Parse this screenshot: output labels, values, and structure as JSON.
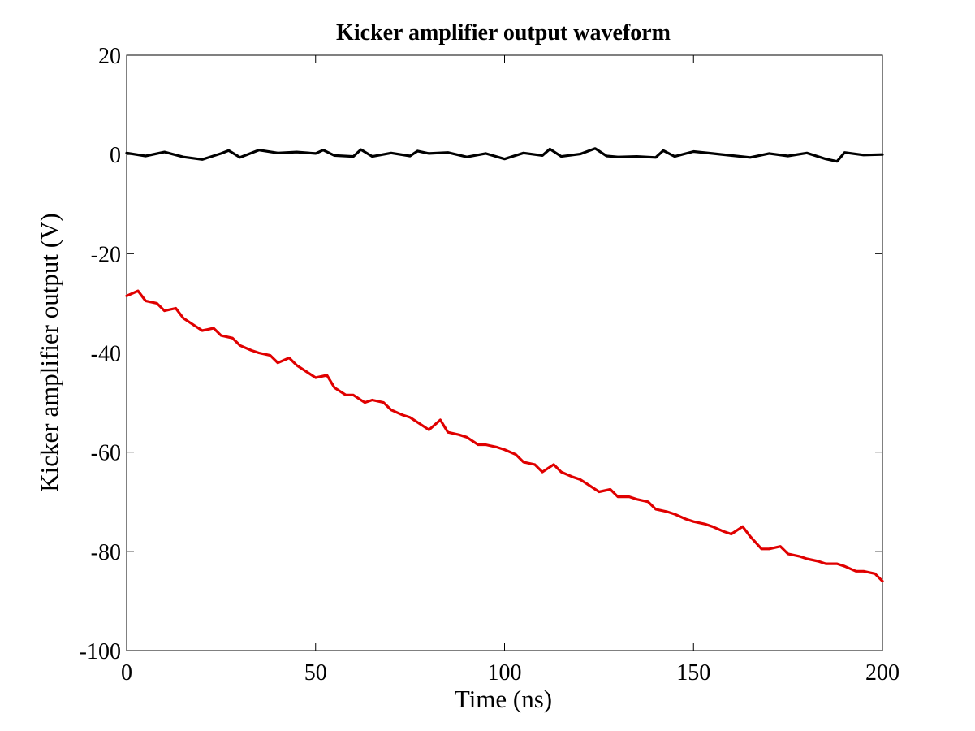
{
  "chart_data": {
    "type": "line",
    "title": "Kicker amplifier output waveform",
    "xlabel": "Time (ns)",
    "ylabel": "Kicker amplifier output (V)",
    "xlim": [
      0,
      200
    ],
    "ylim": [
      -100,
      20
    ],
    "xticks": [
      0,
      50,
      100,
      150,
      200
    ],
    "yticks": [
      20,
      0,
      -20,
      -40,
      -60,
      -80,
      -100
    ],
    "xtick_labels": [
      "0",
      "50",
      "100",
      "150",
      "200"
    ],
    "ytick_labels": [
      "20",
      "0",
      "-20",
      "-40",
      "-60",
      "-80",
      "-100"
    ],
    "grid": false,
    "legend": "none",
    "series": [
      {
        "color": "#000000",
        "x": [
          0,
          5,
          10,
          15,
          20,
          25,
          27,
          30,
          35,
          40,
          45,
          50,
          52,
          55,
          60,
          62,
          65,
          70,
          75,
          77,
          80,
          85,
          90,
          95,
          100,
          105,
          110,
          112,
          115,
          120,
          124,
          127,
          130,
          135,
          140,
          142,
          145,
          150,
          155,
          160,
          165,
          170,
          175,
          180,
          185,
          188,
          190,
          195,
          200
        ],
        "y": [
          0.3,
          -0.3,
          0.5,
          -0.5,
          -1.0,
          0.2,
          0.8,
          -0.6,
          0.9,
          0.3,
          0.5,
          0.2,
          0.9,
          -0.2,
          -0.4,
          1.0,
          -0.4,
          0.3,
          -0.3,
          0.7,
          0.2,
          0.4,
          -0.5,
          0.2,
          -0.9,
          0.3,
          -0.2,
          1.1,
          -0.4,
          0.1,
          1.2,
          -0.3,
          -0.5,
          -0.4,
          -0.6,
          0.8,
          -0.4,
          0.6,
          0.2,
          -0.2,
          -0.6,
          0.2,
          -0.3,
          0.3,
          -0.9,
          -1.4,
          0.4,
          -0.1,
          0.0
        ]
      },
      {
        "color": "#e00000",
        "x": [
          0,
          3,
          5,
          8,
          10,
          13,
          15,
          18,
          20,
          23,
          25,
          28,
          30,
          33,
          35,
          38,
          40,
          43,
          45,
          48,
          50,
          53,
          55,
          58,
          60,
          63,
          65,
          68,
          70,
          73,
          75,
          78,
          80,
          83,
          85,
          88,
          90,
          93,
          95,
          98,
          100,
          103,
          105,
          108,
          110,
          113,
          115,
          118,
          120,
          123,
          125,
          128,
          130,
          133,
          135,
          138,
          140,
          143,
          145,
          148,
          150,
          153,
          155,
          158,
          160,
          163,
          165,
          168,
          170,
          173,
          175,
          178,
          180,
          183,
          185,
          188,
          190,
          193,
          195,
          198,
          200
        ],
        "y": [
          -28.5,
          -27.5,
          -29.5,
          -30.0,
          -31.5,
          -31.0,
          -33.0,
          -34.5,
          -35.5,
          -35.0,
          -36.5,
          -37.0,
          -38.5,
          -39.5,
          -40.0,
          -40.5,
          -42.0,
          -41.0,
          -42.5,
          -44.0,
          -45.0,
          -44.5,
          -47.0,
          -48.5,
          -48.5,
          -50.0,
          -49.5,
          -50.0,
          -51.5,
          -52.5,
          -53.0,
          -54.5,
          -55.5,
          -53.5,
          -56.0,
          -56.5,
          -57.0,
          -58.5,
          -58.5,
          -59.0,
          -59.5,
          -60.5,
          -62.0,
          -62.5,
          -64.0,
          -62.5,
          -64.0,
          -65.0,
          -65.5,
          -67.0,
          -68.0,
          -67.5,
          -69.0,
          -69.0,
          -69.5,
          -70.0,
          -71.5,
          -72.0,
          -72.5,
          -73.5,
          -74.0,
          -74.5,
          -75.0,
          -76.0,
          -76.5,
          -75.0,
          -77.0,
          -79.5,
          -79.5,
          -79.0,
          -80.5,
          -81.0,
          -81.5,
          -82.0,
          -82.5,
          -82.5,
          -83.0,
          -84.0,
          -84.0,
          -84.5,
          -86.0
        ]
      }
    ]
  }
}
